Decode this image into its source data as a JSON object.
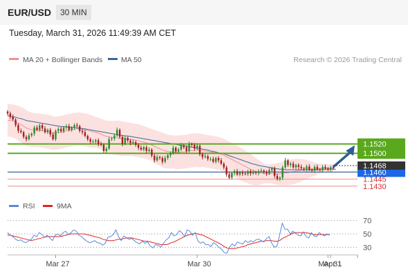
{
  "header": {
    "symbol": "EUR/USD",
    "timeframe": "30 MIN",
    "datetime": "Tuesday, March 31, 2026 11:49:39 AM CET"
  },
  "legend": {
    "ma20_label": "MA 20 + Bollinger Bands",
    "ma50_label": "MA 50",
    "credit": "Research © 2026 Trading Central",
    "rsi_label": "RSI",
    "ma9_label": "9MA"
  },
  "colors": {
    "candle_up": "#2a8a2a",
    "candle_down": "#a11f1f",
    "bollinger_fill": "#fcdcdc",
    "ma20": "#f09090",
    "ma50": "#39689a",
    "resistance": "#5aa81d",
    "pivot": "#1c68e6",
    "support": "#f08c8c",
    "current_price_tag": "#333333",
    "arrow": "#2c5d95",
    "rsi": "#5a88d8",
    "rsi_ma9": "#e22222"
  },
  "chart_data": [
    {
      "type": "candlestick",
      "title": "EUR/USD 30 MIN",
      "x_ticks": [
        "Mar 27",
        "Mar 30",
        "Mar 31",
        "Apr 1"
      ],
      "ylim": [
        1.1415,
        1.1665
      ],
      "current_price": 1.1468,
      "arrow": {
        "direction": "up",
        "target": 1.152
      },
      "levels": [
        {
          "value": 1.152,
          "label": "1.1520",
          "kind": "resistance"
        },
        {
          "value": 1.15,
          "label": "1.1500",
          "kind": "resistance"
        },
        {
          "value": 1.146,
          "label": "1.1460",
          "kind": "pivot"
        },
        {
          "value": 1.1445,
          "label": "1.1445",
          "kind": "support"
        },
        {
          "value": 1.143,
          "label": "1.1430",
          "kind": "support"
        }
      ],
      "close": [
        1.1585,
        1.1578,
        1.1572,
        1.156,
        1.1548,
        1.1545,
        1.1535,
        1.153,
        1.1538,
        1.1542,
        1.1555,
        1.155,
        1.156,
        1.1553,
        1.1545,
        1.155,
        1.154,
        1.153,
        1.1548,
        1.1552,
        1.1547,
        1.1555,
        1.1558,
        1.155,
        1.1555,
        1.156,
        1.1558,
        1.1548,
        1.1545,
        1.1537,
        1.153,
        1.1525,
        1.1525,
        1.1528,
        1.152,
        1.1518,
        1.1505,
        1.151,
        1.153,
        1.1532,
        1.1538,
        1.155,
        1.1535,
        1.152,
        1.1533,
        1.1527,
        1.1522,
        1.1524,
        1.1518,
        1.1512,
        1.1508,
        1.1513,
        1.1505,
        1.1508,
        1.1495,
        1.1485,
        1.1492,
        1.149,
        1.1482,
        1.149,
        1.1496,
        1.15,
        1.1512,
        1.1504,
        1.1508,
        1.1517,
        1.1513,
        1.1505,
        1.152,
        1.1518,
        1.151,
        1.1516,
        1.1498,
        1.1492,
        1.1494,
        1.1488,
        1.1488,
        1.1482,
        1.149,
        1.1485,
        1.1478,
        1.147,
        1.1455,
        1.1448,
        1.1458,
        1.1462,
        1.1455,
        1.146,
        1.1457,
        1.1456,
        1.1462,
        1.1457,
        1.146,
        1.1458,
        1.1462,
        1.1463,
        1.146,
        1.1457,
        1.1464,
        1.1468,
        1.1452,
        1.1445,
        1.1448,
        1.147,
        1.1485,
        1.1475,
        1.1478,
        1.147,
        1.1475,
        1.1471,
        1.1468,
        1.1466,
        1.1472,
        1.1465,
        1.1463,
        1.1471,
        1.1466,
        1.1465,
        1.1471,
        1.1468,
        1.1466,
        1.147,
        1.1468
      ],
      "ma20": [
        1.157,
        1.157,
        1.1569,
        1.1567,
        1.1564,
        1.1561,
        1.1558,
        1.1554,
        1.1552,
        1.155,
        1.155,
        1.1549,
        1.1549,
        1.1548,
        1.1547,
        1.1546,
        1.1545,
        1.1543,
        1.1543,
        1.1544,
        1.1545,
        1.1546,
        1.1548,
        1.1549,
        1.155,
        1.1551,
        1.1552,
        1.1552,
        1.1551,
        1.155,
        1.1549,
        1.1547,
        1.1546,
        1.1545,
        1.1543,
        1.1541,
        1.1538,
        1.1536,
        1.1535,
        1.1534,
        1.1533,
        1.1533,
        1.1532,
        1.1531,
        1.1531,
        1.153,
        1.153,
        1.1529,
        1.1528,
        1.1527,
        1.1525,
        1.1524,
        1.1522,
        1.152,
        1.1518,
        1.1515,
        1.1512,
        1.151,
        1.1507,
        1.1505,
        1.1504,
        1.1503,
        1.1503,
        1.1502,
        1.1502,
        1.1503,
        1.1503,
        1.1504,
        1.1505,
        1.1506,
        1.1506,
        1.1507,
        1.1506,
        1.1506,
        1.1505,
        1.1504,
        1.1503,
        1.1502,
        1.1501,
        1.15,
        1.1498,
        1.1496,
        1.1493,
        1.149,
        1.1487,
        1.1484,
        1.1481,
        1.1478,
        1.1475,
        1.1472,
        1.1469,
        1.1466,
        1.1463,
        1.1461,
        1.1459,
        1.1458,
        1.1457,
        1.1456,
        1.1456,
        1.1457,
        1.1456,
        1.1456,
        1.1456,
        1.1457,
        1.1458,
        1.1459,
        1.146,
        1.1461,
        1.1462,
        1.1463,
        1.1464,
        1.1465,
        1.1465,
        1.1466,
        1.1466,
        1.1466,
        1.1467,
        1.1467,
        1.1468,
        1.1468,
        1.1468,
        1.1468,
        1.1468
      ],
      "ma50": [
        1.158,
        1.1579,
        1.1578,
        1.1577,
        1.1575,
        1.1574,
        1.1572,
        1.157,
        1.1569,
        1.1568,
        1.1567,
        1.1566,
        1.1565,
        1.1564,
        1.1563,
        1.1562,
        1.1561,
        1.156,
        1.1559,
        1.1558,
        1.1557,
        1.1557,
        1.1556,
        1.1556,
        1.1555,
        1.1555,
        1.1554,
        1.1554,
        1.1553,
        1.1552,
        1.1551,
        1.155,
        1.1549,
        1.1548,
        1.1547,
        1.1546,
        1.1545,
        1.1544,
        1.1543,
        1.1542,
        1.1541,
        1.154,
        1.1539,
        1.1538,
        1.1537,
        1.1537,
        1.1536,
        1.1535,
        1.1534,
        1.1533,
        1.1532,
        1.1531,
        1.153,
        1.1529,
        1.1528,
        1.1527,
        1.1526,
        1.1525,
        1.1524,
        1.1523,
        1.1522,
        1.1521,
        1.152,
        1.1519,
        1.1518,
        1.1517,
        1.1516,
        1.1515,
        1.1514,
        1.1513,
        1.1512,
        1.1511,
        1.151,
        1.1509,
        1.1508,
        1.1507,
        1.1505,
        1.1504,
        1.1503,
        1.1501,
        1.15,
        1.1499,
        1.1497,
        1.1495,
        1.1493,
        1.1491,
        1.1489,
        1.1487,
        1.1485,
        1.1483,
        1.1481,
        1.1479,
        1.1477,
        1.1476,
        1.1474,
        1.1473,
        1.1472,
        1.1471,
        1.147,
        1.1469,
        1.1468,
        1.1467,
        1.1466,
        1.1466,
        1.1465,
        1.1465,
        1.1465,
        1.1465,
        1.1465,
        1.1465,
        1.1465,
        1.1465,
        1.1465,
        1.1465,
        1.1465,
        1.1465,
        1.1465,
        1.1465,
        1.1465,
        1.1466,
        1.1466,
        1.1466,
        1.1466,
        1.1466
      ],
      "bollinger_upper": [
        1.1605,
        1.1605,
        1.1604,
        1.1603,
        1.1601,
        1.1599,
        1.1596,
        1.1592,
        1.1589,
        1.1587,
        1.1586,
        1.1585,
        1.1585,
        1.1584,
        1.1583,
        1.1582,
        1.1581,
        1.1579,
        1.1578,
        1.1579,
        1.158,
        1.1581,
        1.1583,
        1.1584,
        1.1585,
        1.1586,
        1.1587,
        1.1587,
        1.1586,
        1.1585,
        1.1584,
        1.1582,
        1.158,
        1.1578,
        1.1576,
        1.1574,
        1.1572,
        1.157,
        1.1569,
        1.1569,
        1.1569,
        1.157,
        1.1569,
        1.1568,
        1.1567,
        1.1566,
        1.1565,
        1.1564,
        1.1563,
        1.1562,
        1.156,
        1.1558,
        1.1556,
        1.1554,
        1.1552,
        1.155,
        1.1548,
        1.1546,
        1.1544,
        1.1542,
        1.154,
        1.1539,
        1.1538,
        1.1538,
        1.1538,
        1.1539,
        1.1539,
        1.154,
        1.1541,
        1.1542,
        1.1542,
        1.1543,
        1.1542,
        1.1541,
        1.154,
        1.1539,
        1.1538,
        1.1537,
        1.1536,
        1.1535,
        1.1533,
        1.1531,
        1.1528,
        1.1525,
        1.1522,
        1.1519,
        1.1516,
        1.1513,
        1.151,
        1.1506,
        1.1502,
        1.1498,
        1.1494,
        1.149,
        1.1486,
        1.1482,
        1.1478,
        1.1476,
        1.1476,
        1.1478,
        1.1478,
        1.1479,
        1.148,
        1.1482,
        1.1484,
        1.1486,
        1.1487,
        1.1488,
        1.1488,
        1.1488,
        1.1488,
        1.1487,
        1.1486,
        1.1484,
        1.1482,
        1.148,
        1.1479,
        1.1478,
        1.1478,
        1.1477,
        1.1477,
        1.1477,
        1.1477
      ],
      "bollinger_lower": [
        1.1535,
        1.1535,
        1.1534,
        1.1531,
        1.1527,
        1.1523,
        1.152,
        1.1516,
        1.1515,
        1.1513,
        1.1514,
        1.1513,
        1.1513,
        1.1512,
        1.1511,
        1.151,
        1.1509,
        1.1507,
        1.1508,
        1.1509,
        1.151,
        1.1511,
        1.1513,
        1.1514,
        1.1515,
        1.1516,
        1.1517,
        1.1517,
        1.1516,
        1.1515,
        1.1514,
        1.1512,
        1.1512,
        1.1512,
        1.151,
        1.1508,
        1.1504,
        1.1502,
        1.1501,
        1.1499,
        1.1497,
        1.1496,
        1.1495,
        1.1494,
        1.1495,
        1.1494,
        1.1495,
        1.1494,
        1.1493,
        1.1492,
        1.149,
        1.149,
        1.1488,
        1.1486,
        1.1484,
        1.148,
        1.1476,
        1.1474,
        1.147,
        1.1468,
        1.1468,
        1.1467,
        1.1468,
        1.1466,
        1.1466,
        1.1467,
        1.1467,
        1.1468,
        1.1469,
        1.147,
        1.147,
        1.1471,
        1.147,
        1.1471,
        1.147,
        1.1469,
        1.1468,
        1.1467,
        1.1466,
        1.1465,
        1.1463,
        1.1461,
        1.1458,
        1.1455,
        1.1452,
        1.1449,
        1.1446,
        1.1443,
        1.144,
        1.1438,
        1.1436,
        1.1434,
        1.1432,
        1.1432,
        1.1432,
        1.1434,
        1.1436,
        1.1436,
        1.1436,
        1.1436,
        1.1434,
        1.1433,
        1.1432,
        1.1432,
        1.1432,
        1.1432,
        1.1433,
        1.1434,
        1.1436,
        1.1438,
        1.144,
        1.1443,
        1.1444,
        1.1448,
        1.145,
        1.1452,
        1.1455,
        1.1456,
        1.1458,
        1.1459,
        1.1459,
        1.1459,
        1.1459
      ]
    },
    {
      "type": "line",
      "title": "RSI",
      "ylim": [
        20,
        80
      ],
      "y_ticks": [
        30,
        50,
        70
      ],
      "series": [
        {
          "name": "RSI",
          "values": [
            52,
            48,
            46,
            42,
            40,
            41,
            38,
            37,
            40,
            42,
            48,
            46,
            52,
            49,
            45,
            48,
            44,
            40,
            48,
            50,
            47,
            52,
            54,
            49,
            52,
            56,
            54,
            48,
            46,
            42,
            39,
            37,
            38,
            40,
            37,
            36,
            33,
            36,
            45,
            46,
            49,
            56,
            46,
            40,
            47,
            44,
            42,
            43,
            40,
            37,
            35,
            39,
            36,
            38,
            32,
            29,
            34,
            33,
            30,
            36,
            41,
            44,
            52,
            47,
            49,
            55,
            52,
            46,
            56,
            54,
            48,
            52,
            40,
            36,
            38,
            34,
            34,
            31,
            37,
            34,
            30,
            27,
            22,
            21,
            30,
            35,
            32,
            38,
            36,
            35,
            40,
            37,
            40,
            38,
            41,
            42,
            40,
            38,
            43,
            46,
            36,
            30,
            32,
            48,
            66,
            57,
            57,
            50,
            54,
            51,
            48,
            47,
            53,
            46,
            44,
            52,
            47,
            46,
            52,
            49,
            47,
            50,
            48
          ]
        },
        {
          "name": "9MA",
          "values": [
            48,
            48,
            47,
            46,
            45,
            44,
            43,
            42,
            41,
            40,
            41,
            42,
            43,
            44,
            45,
            46,
            46,
            46,
            46,
            46,
            46,
            47,
            48,
            49,
            50,
            50,
            50,
            50,
            50,
            50,
            49,
            48,
            47,
            46,
            45,
            44,
            42,
            41,
            40,
            40,
            40,
            41,
            42,
            42,
            43,
            44,
            44,
            44,
            43,
            42,
            41,
            40,
            39,
            39,
            38,
            37,
            36,
            35,
            34,
            34,
            34,
            35,
            37,
            38,
            40,
            42,
            44,
            46,
            48,
            49,
            50,
            51,
            50,
            49,
            48,
            46,
            44,
            42,
            40,
            38,
            36,
            34,
            31,
            29,
            28,
            28,
            28,
            29,
            30,
            31,
            32,
            34,
            35,
            36,
            37,
            38,
            39,
            39,
            40,
            40,
            40,
            39,
            39,
            40,
            43,
            45,
            47,
            49,
            51,
            52,
            52,
            52,
            52,
            52,
            51,
            50,
            49,
            49,
            49,
            49,
            49,
            49,
            49
          ]
        }
      ]
    }
  ]
}
